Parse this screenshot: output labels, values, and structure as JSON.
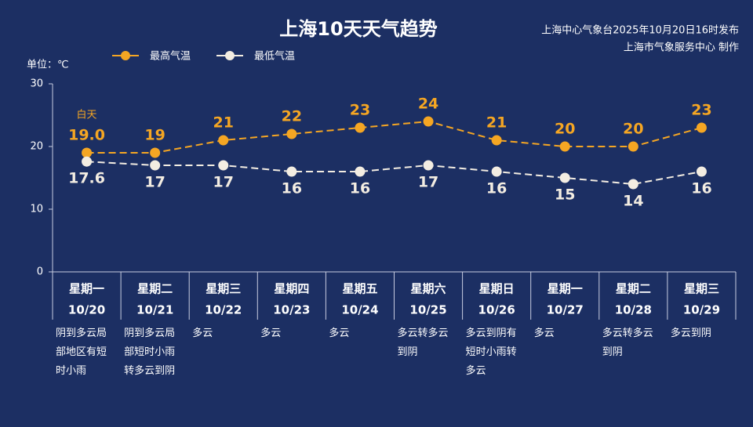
{
  "chart_data": {
    "type": "line",
    "title": "上海10天天气趋势",
    "source": [
      "上海中心气象台2025年10月20日16时发布",
      "上海市气象服务中心 制作"
    ],
    "y_label": "单位：℃",
    "annotation": "白天",
    "categories": [
      "星期一",
      "星期二",
      "星期三",
      "星期四",
      "星期五",
      "星期六",
      "星期日",
      "星期一",
      "星期二",
      "星期三"
    ],
    "dates": [
      "10/20",
      "10/21",
      "10/22",
      "10/23",
      "10/24",
      "10/25",
      "10/26",
      "10/27",
      "10/28",
      "10/29"
    ],
    "weather": [
      "阴到多云局部地区有短时小雨",
      "阴到多云局部短时小雨转多云到阴",
      "多云",
      "多云",
      "多云",
      "多云转多云到阴",
      "多云到阴有短时小雨转多云",
      "多云",
      "多云转多云到阴",
      "多云到阴"
    ],
    "series": [
      {
        "name": "最高气温",
        "color": "#f5a623",
        "values": [
          19,
          19,
          21,
          22,
          23,
          24,
          21,
          20,
          20,
          23
        ],
        "value_labels": [
          "19.0",
          "19",
          "21",
          "22",
          "23",
          "24",
          "21",
          "20",
          "20",
          "23"
        ]
      },
      {
        "name": "最低气温",
        "color": "#f3ede2",
        "values": [
          17.6,
          17,
          17,
          16,
          16,
          17,
          16,
          15,
          14,
          16
        ]
      }
    ],
    "ylim": [
      0,
      30
    ],
    "yticks": [
      0,
      10,
      20,
      30
    ]
  }
}
